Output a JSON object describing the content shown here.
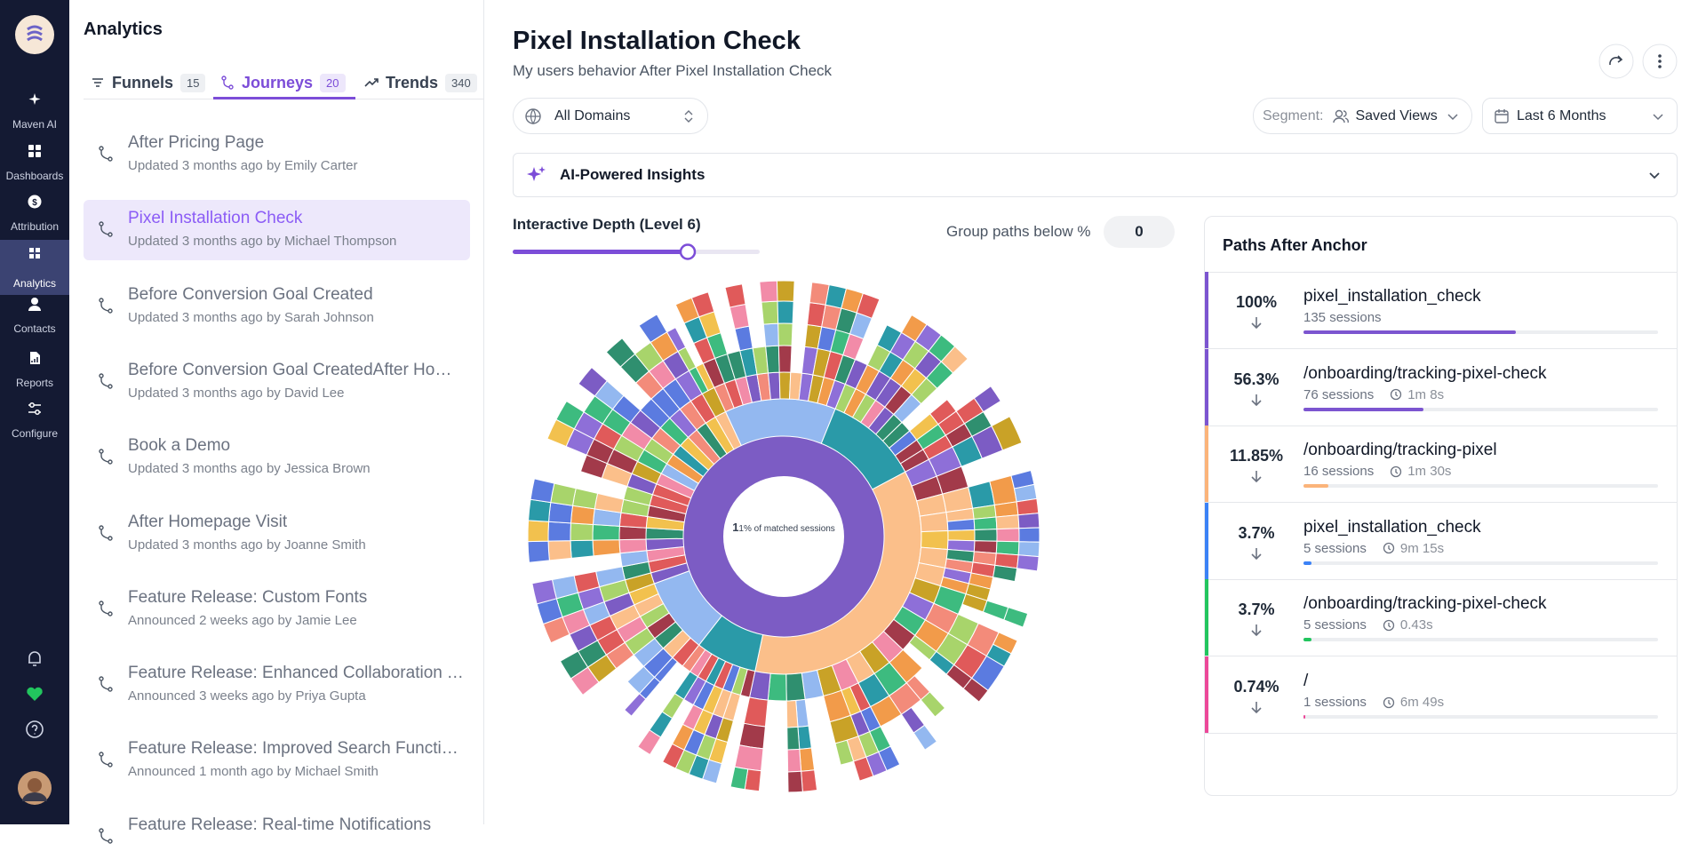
{
  "nav": {
    "items": [
      "Maven AI",
      "Dashboards",
      "Attribution",
      "Analytics",
      "Contacts",
      "Reports",
      "Configure"
    ]
  },
  "panel": {
    "title": "Analytics",
    "tabs": [
      {
        "label": "Funnels",
        "count": 15
      },
      {
        "label": "Journeys",
        "count": 20
      },
      {
        "label": "Trends",
        "count": 340
      }
    ],
    "items": [
      {
        "title": "After Pricing Page",
        "meta": "Updated 3 months ago by Emily Carter"
      },
      {
        "title": "Pixel Installation Check",
        "meta": "Updated 3 months ago by Michael Thompson"
      },
      {
        "title": "Before Conversion Goal Created",
        "meta": "Updated 3 months ago by Sarah Johnson"
      },
      {
        "title": "Before Conversion Goal CreatedAfter Homepage Visit",
        "meta": "Updated 3 months ago by David Lee"
      },
      {
        "title": "Book a Demo",
        "meta": "Updated 3 months ago by Jessica Brown"
      },
      {
        "title": "After Homepage Visit",
        "meta": "Updated 3 months ago by Joanne Smith"
      },
      {
        "title": "Feature Release: Custom Fonts",
        "meta": "Announced 2 weeks ago by Jamie Lee"
      },
      {
        "title": "Feature Release: Enhanced Collaboration Tools",
        "meta": "Announced 3 weeks ago by Priya Gupta"
      },
      {
        "title": "Feature Release: Improved Search Functionality",
        "meta": "Announced 1 month ago by Michael Smith"
      },
      {
        "title": "Feature Release: Real-time Notifications",
        "meta": ""
      }
    ]
  },
  "header": {
    "title": "Pixel Installation Check",
    "subtitle": "My users behavior After Pixel Installation Check"
  },
  "filters": {
    "domain": "All Domains",
    "segment_label": "Segment:",
    "segment": "Saved Views",
    "range": "Last 6 Months"
  },
  "insights": "AI-Powered Insights",
  "depth": {
    "label": "Interactive Depth (Level 6)",
    "group_label": "Group paths below %",
    "group_value": 0
  },
  "sunburst": {
    "center_bold": "1",
    "center_text": "1% of matched sessions"
  },
  "paths": {
    "title": "Paths After Anchor",
    "rows": [
      {
        "percent": {
          "value": 100,
          "label": "100%"
        },
        "color": "#7c55d0",
        "name": "pixel_installation_check",
        "sessions": "135 sessions"
      },
      {
        "percent": {
          "value": 56.3,
          "label": "56.3%"
        },
        "color": "#7c55d0",
        "name": "/onboarding/tracking-pixel-check",
        "sessions": "76 sessions",
        "time": "1m 8s"
      },
      {
        "percent": {
          "value": 11.85,
          "label": "11.85%"
        },
        "color": "#fbb47a",
        "name": "/onboarding/tracking-pixel",
        "sessions": "16 sessions",
        "time": "1m 30s"
      },
      {
        "percent": {
          "value": 3.7,
          "label": "3.7%"
        },
        "color": "#3b82f6",
        "name": "pixel_installation_check",
        "sessions": "5 sessions",
        "time": "9m 15s"
      },
      {
        "percent": {
          "value": 3.7,
          "label": "3.7%"
        },
        "color": "#22c55e",
        "name": "/onboarding/tracking-pixel-check",
        "sessions": "5 sessions",
        "time": "0.43s"
      },
      {
        "percent": {
          "value": 0.74,
          "label": "0.74%"
        },
        "color": "#ec4899",
        "name": "/",
        "sessions": "1 sessions",
        "time": "6m 49s"
      }
    ]
  }
}
